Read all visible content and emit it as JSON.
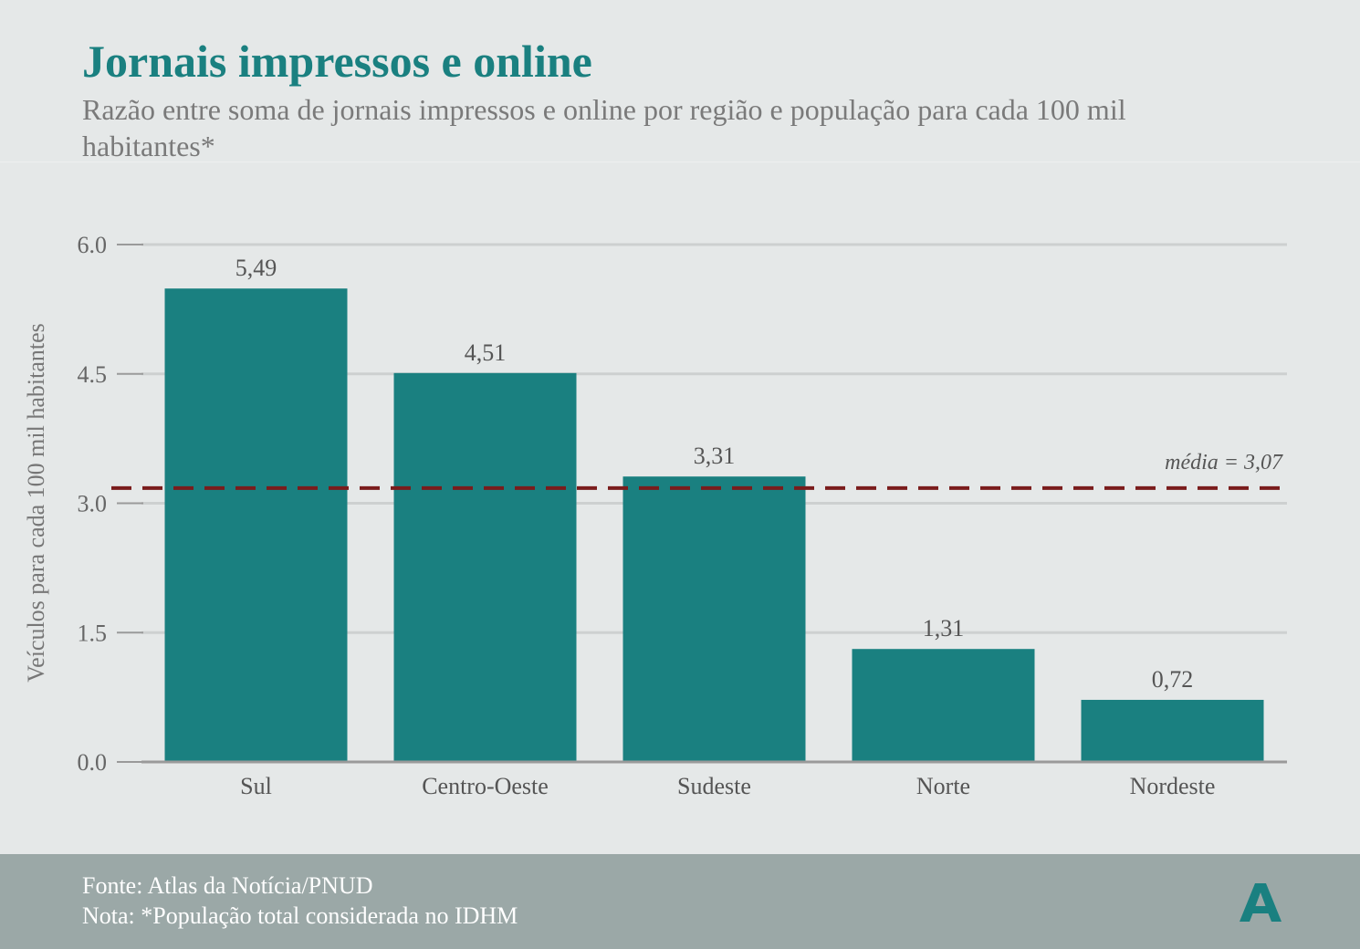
{
  "header": {
    "title": "Jornais impressos e online",
    "subtitle": "Razão entre soma de jornais impressos e online por região e população para cada 100 mil habitantes*"
  },
  "chart_data": {
    "type": "bar",
    "title": "Jornais impressos e online",
    "ylabel": "Veículos para cada 100 mil habitantes",
    "xlabel": "",
    "categories": [
      "Sul",
      "Centro-Oeste",
      "Sudeste",
      "Norte",
      "Nordeste"
    ],
    "values": [
      5.49,
      4.51,
      3.31,
      1.31,
      0.72
    ],
    "value_labels": [
      "5,49",
      "4,51",
      "3,31",
      "1,31",
      "0,72"
    ],
    "ylim": [
      0,
      6
    ],
    "yticks": [
      0,
      1.5,
      3,
      4.5,
      6
    ],
    "ytick_labels": [
      "0.0",
      "1.5",
      "3.0",
      "4.5",
      "6.0"
    ],
    "grid": true,
    "reference_line": {
      "value": 3.07,
      "label": "média = 3,07",
      "style": "dashed"
    },
    "colors": {
      "bar": "#1a8080",
      "mean_line": "#7a1c1c",
      "grid": "#cdd0d0",
      "axis": "#9a9a9a"
    }
  },
  "footer": {
    "source": "Fonte: Atlas da Notícia/PNUD",
    "note": "Nota: *População total considerada no IDHM",
    "logo_icon": "atlas-logo-icon"
  }
}
